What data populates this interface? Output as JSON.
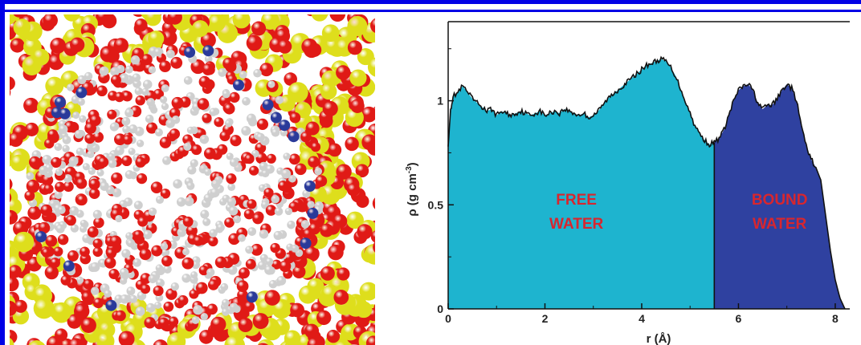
{
  "colors": {
    "frame": "#0000e6",
    "free_water": "#1eb4cf",
    "bound_water": "#2f41a0",
    "region_label": "#d8262e",
    "oxygen": "#e01a16",
    "silicon": "#dede1c",
    "hydrogen": "#eeeeee",
    "ion": "#2a3a9a"
  },
  "molecule_image": {
    "description_icon": "molecular-snapshot-icon"
  },
  "chart_data": {
    "type": "area",
    "xlabel": "r (Å)",
    "ylabel": "ρ (g cm",
    "ylabel_sup": "-3",
    "ylabel_close": ")",
    "xlim": [
      0,
      8.3
    ],
    "ylim": [
      0,
      1.38
    ],
    "x_ticks": [
      0,
      2,
      4,
      6,
      8
    ],
    "y_ticks": [
      0,
      0.5,
      1
    ],
    "x_tick_labels": [
      "0",
      "2",
      "4",
      "6",
      "8"
    ],
    "y_tick_labels": [
      "0",
      "0.5",
      "1"
    ],
    "boundary_r": 5.5,
    "regions": [
      {
        "name": "FREE WATER",
        "line1": "FREE",
        "line2": "WATER",
        "x_range": [
          0,
          5.5
        ]
      },
      {
        "name": "BOUND WATER",
        "line1": "BOUND",
        "line2": "WATER",
        "x_range": [
          5.5,
          8.2
        ]
      }
    ],
    "x": [
      0,
      0.05,
      0.1,
      0.2,
      0.3,
      0.4,
      0.5,
      0.6,
      0.7,
      0.8,
      0.9,
      1.0,
      1.1,
      1.2,
      1.3,
      1.4,
      1.5,
      1.6,
      1.7,
      1.8,
      1.9,
      2.0,
      2.1,
      2.2,
      2.3,
      2.4,
      2.5,
      2.6,
      2.7,
      2.8,
      2.9,
      3.0,
      3.1,
      3.2,
      3.3,
      3.4,
      3.5,
      3.6,
      3.7,
      3.8,
      3.9,
      4.0,
      4.1,
      4.2,
      4.3,
      4.4,
      4.5,
      4.6,
      4.7,
      4.8,
      4.9,
      5.0,
      5.1,
      5.2,
      5.3,
      5.4,
      5.5,
      5.6,
      5.7,
      5.8,
      5.9,
      6.0,
      6.1,
      6.2,
      6.3,
      6.4,
      6.5,
      6.6,
      6.7,
      6.8,
      6.9,
      7.0,
      7.1,
      7.2,
      7.3,
      7.4,
      7.5,
      7.6,
      7.7,
      7.8,
      7.9,
      8.0,
      8.1,
      8.2
    ],
    "density": [
      0.78,
      0.96,
      1.02,
      1.04,
      1.07,
      1.04,
      1.01,
      0.99,
      0.97,
      0.95,
      0.96,
      0.93,
      0.95,
      0.94,
      0.93,
      0.94,
      0.95,
      0.94,
      0.93,
      0.94,
      0.95,
      0.93,
      0.94,
      0.95,
      0.94,
      0.96,
      0.95,
      0.94,
      0.93,
      0.94,
      0.92,
      0.93,
      0.95,
      0.98,
      1.01,
      1.03,
      1.05,
      1.07,
      1.09,
      1.11,
      1.13,
      1.15,
      1.17,
      1.18,
      1.19,
      1.2,
      1.19,
      1.16,
      1.12,
      1.06,
      1.0,
      0.94,
      0.88,
      0.84,
      0.81,
      0.79,
      0.8,
      0.82,
      0.86,
      0.93,
      1.0,
      1.05,
      1.07,
      1.08,
      1.05,
      0.99,
      0.96,
      0.98,
      0.98,
      1.01,
      1.05,
      1.08,
      1.06,
      1.0,
      0.88,
      0.78,
      0.72,
      0.68,
      0.62,
      0.45,
      0.28,
      0.14,
      0.05,
      0.0
    ]
  }
}
